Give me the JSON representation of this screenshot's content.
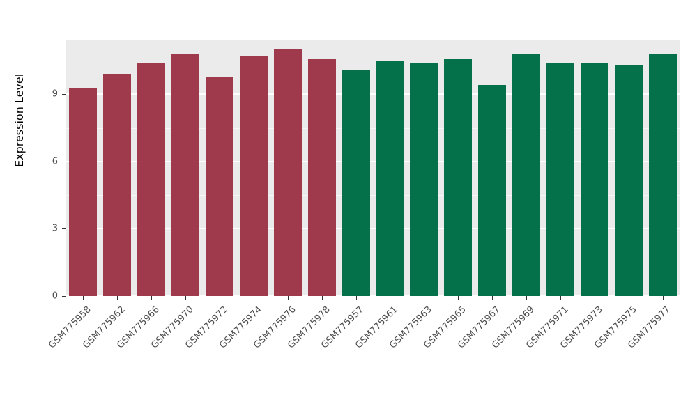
{
  "chart": {
    "ylabel": "Expression Level",
    "panel_background": "#EBEBEB",
    "grid_color": "#FFFFFF",
    "tick_label_color": "#4D4D4D",
    "yticks": [
      0,
      3,
      6,
      9
    ],
    "yticks_minor": [
      1.5,
      4.5,
      7.5,
      10.5
    ],
    "ylim": [
      0,
      11.4
    ]
  },
  "chart_data": {
    "type": "bar",
    "title": "",
    "xlabel": "",
    "ylabel": "Expression Level",
    "ylim": [
      0,
      11.4
    ],
    "grid": true,
    "legend_position": "none",
    "categories": [
      "GSM775958",
      "GSM775962",
      "GSM775966",
      "GSM775970",
      "GSM775972",
      "GSM775974",
      "GSM775976",
      "GSM775978",
      "GSM775957",
      "GSM775961",
      "GSM775963",
      "GSM775965",
      "GSM775967",
      "GSM775969",
      "GSM775971",
      "GSM775973",
      "GSM775975",
      "GSM775977"
    ],
    "values": [
      9.3,
      9.9,
      10.4,
      10.8,
      9.8,
      10.7,
      11.0,
      10.6,
      10.1,
      10.5,
      10.4,
      10.6,
      9.4,
      10.8,
      10.4,
      10.4,
      10.3,
      10.8
    ],
    "groups": [
      "A",
      "A",
      "A",
      "A",
      "A",
      "A",
      "A",
      "A",
      "B",
      "B",
      "B",
      "B",
      "B",
      "B",
      "B",
      "B",
      "B",
      "B"
    ],
    "group_colors": {
      "A": "#9E3A4C",
      "B": "#04714A"
    }
  }
}
